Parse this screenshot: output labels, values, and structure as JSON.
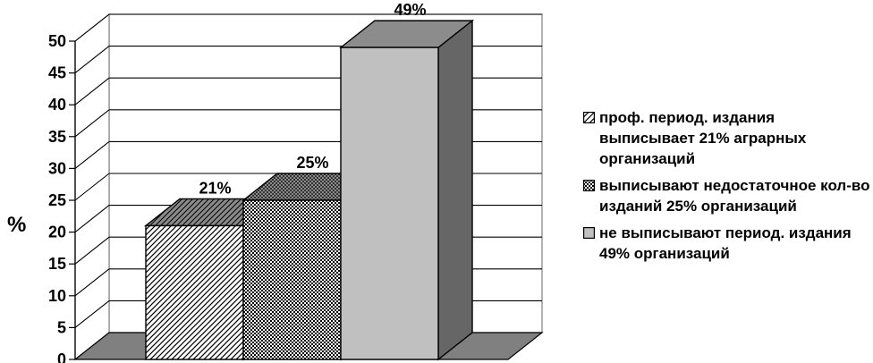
{
  "chart_data": {
    "type": "bar",
    "three_d": true,
    "ylabel": "%",
    "ylim": [
      0,
      50
    ],
    "y_ticks": [
      0,
      5,
      10,
      15,
      20,
      25,
      30,
      35,
      40,
      45,
      50
    ],
    "y_tick_labels": [
      "0",
      "5",
      "10",
      "15",
      "20",
      "25",
      "30",
      "35",
      "40",
      "45",
      "50"
    ],
    "grid": true,
    "legend_position": "right",
    "series": [
      {
        "legend": "проф. период. издания выписывает 21% аграрных организаций",
        "value": 21,
        "data_label": "21%",
        "pattern": "diagonal-hatch"
      },
      {
        "legend": "выписывают недостаточное кол-во изданий 25% организаций",
        "value": 25,
        "data_label": "25%",
        "pattern": "checkerboard"
      },
      {
        "legend": "не выписывают период. издания 49% организаций",
        "value": 49,
        "data_label": "49%",
        "pattern": "solid-gray"
      }
    ],
    "colors": {
      "floor": "#808080",
      "wall": "#ffffff",
      "gray_bar_front": "#c0c0c0",
      "gray_bar_side": "#666666",
      "gray_bar_top": "#8c8c8c",
      "hatch_top": "#808080"
    }
  }
}
